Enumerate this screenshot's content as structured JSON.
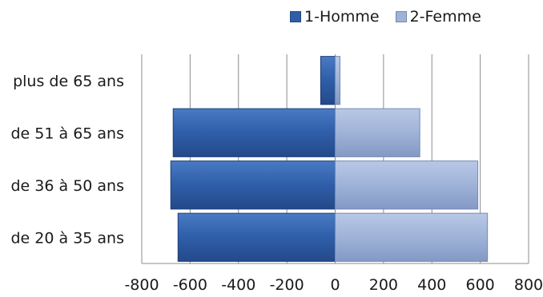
{
  "chart_data": {
    "type": "bar",
    "orientation": "horizontal",
    "categories": [
      "plus de 65 ans",
      "de 51 à 65 ans",
      "de 36 à 50 ans",
      "de 20 à 35 ans"
    ],
    "series": [
      {
        "name": "1-Homme",
        "values": [
          -60,
          -670,
          -680,
          -650
        ],
        "color": "#2f5ea8"
      },
      {
        "name": "2-Femme",
        "values": [
          20,
          350,
          590,
          630
        ],
        "color": "#9fb3d8"
      }
    ],
    "xlim": [
      -800,
      800
    ],
    "x_ticks": [
      -800,
      -600,
      -400,
      -200,
      0,
      200,
      400,
      600,
      800
    ],
    "x_tick_labels": [
      "-800",
      "-600",
      "-400",
      "-200",
      "0",
      "200",
      "400",
      "600",
      "800"
    ],
    "grid": "vertical",
    "legend_position": "top-right",
    "title": "",
    "xlabel": "",
    "ylabel": ""
  }
}
